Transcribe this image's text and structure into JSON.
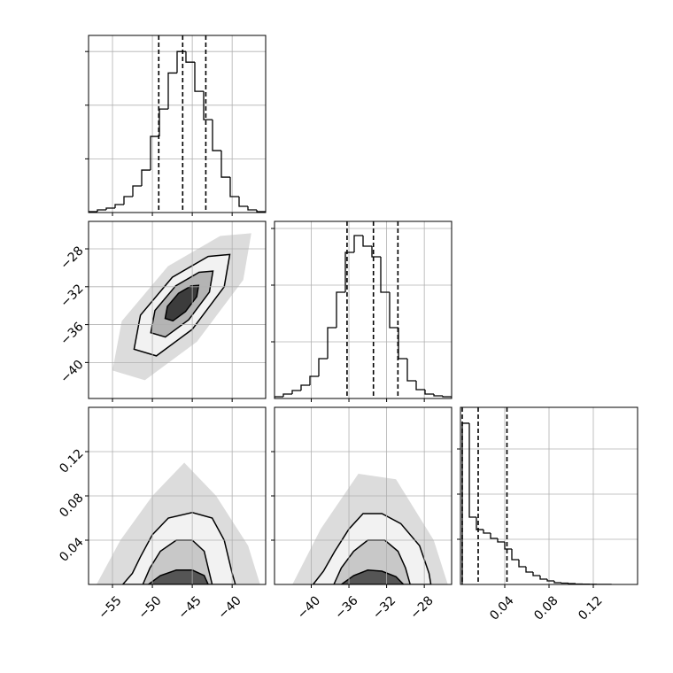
{
  "chart_data": [
    {
      "type": "hist",
      "xlim": [
        -58,
        -35.8
      ],
      "ylim": [
        0,
        3300
      ],
      "xticks": [
        -55,
        -50,
        -45,
        -40
      ],
      "yticks": [
        1000,
        2000,
        3000
      ],
      "show_xtick_labels": false,
      "show_ytick_labels": false,
      "grid": true,
      "color": "#000000",
      "bins": [
        -58,
        -56.89,
        -55.78,
        -54.67,
        -53.56,
        -52.45,
        -51.34,
        -50.23,
        -49.12,
        -48.01,
        -46.9,
        -45.79,
        -44.68,
        -43.57,
        -42.46,
        -41.35,
        -40.24,
        -39.13,
        -38.02,
        -36.91,
        -35.8
      ],
      "counts": [
        16,
        50,
        82,
        148,
        297,
        495,
        791,
        1418,
        1929,
        2600,
        3000,
        2802,
        2258,
        1731,
        1154,
        659,
        297,
        115,
        50,
        16
      ],
      "quantiles": [
        -49.2,
        -46.2,
        -43.3
      ]
    },
    {
      "type": "contour",
      "xlim": [
        -58,
        -35.8
      ],
      "ylim": [
        -43.8,
        -25.1
      ],
      "xticks": [
        -55,
        -50,
        -45,
        -40
      ],
      "yticks": [
        {
          "value": -28,
          "label": "−28"
        },
        {
          "value": -32,
          "label": "−32"
        },
        {
          "value": -36,
          "label": "−36"
        },
        {
          "value": -40,
          "label": "−40"
        }
      ],
      "show_xtick_labels": false,
      "show_ytick_labels": true,
      "grid": true,
      "contours": [
        {
          "fill": "#dcdcdc",
          "x": [
            -37.6,
            -41.51,
            -48.04,
            -53.84,
            -55.0,
            -50.94,
            -44.41,
            -38.61
          ],
          "y": [
            -26.35,
            -26.64,
            -29.83,
            -35.63,
            -40.85,
            -41.87,
            -37.81,
            -31.28
          ]
        },
        {
          "fill": "#f2f2f2",
          "edge": "#000000",
          "x": [
            -40.3,
            -43.0,
            -47.5,
            -51.5,
            -52.3,
            -49.5,
            -45.0,
            -41.0
          ],
          "y": [
            -28.6,
            -28.8,
            -31.0,
            -35.0,
            -38.6,
            -39.3,
            -36.5,
            -32.0
          ]
        },
        {
          "fill": "#b4b4b4",
          "edge": "#000000",
          "x": [
            -42.4,
            -44.15,
            -47.08,
            -49.68,
            -50.2,
            -48.38,
            -45.45,
            -42.85
          ],
          "y": [
            -30.35,
            -30.48,
            -31.91,
            -34.51,
            -36.85,
            -37.31,
            -35.49,
            -32.56
          ]
        },
        {
          "fill": "#3c3c3c",
          "edge": "#000000",
          "x": [
            -44.2,
            -45.14,
            -46.72,
            -48.12,
            -48.4,
            -47.42,
            -45.84,
            -44.44
          ],
          "y": [
            -31.85,
            -31.92,
            -32.69,
            -34.09,
            -35.35,
            -35.6,
            -34.62,
            -33.04
          ]
        }
      ]
    },
    {
      "type": "hist",
      "xlim": [
        -43.9,
        -25.1
      ],
      "ylim": [
        0,
        3125
      ],
      "xticks": [
        -40,
        -36,
        -32,
        -28
      ],
      "yticks": [
        1000,
        2000,
        3000
      ],
      "show_xtick_labels": false,
      "show_ytick_labels": false,
      "grid": true,
      "color": "#000000",
      "bins": [
        -43.9,
        -42.96,
        -42.02,
        -41.08,
        -40.14,
        -39.2,
        -38.26,
        -37.32,
        -36.38,
        -35.44,
        -34.5,
        -33.56,
        -32.62,
        -31.68,
        -30.74,
        -29.8,
        -28.86,
        -27.92,
        -26.98,
        -26.04,
        -25.1
      ],
      "counts": [
        31,
        78,
        141,
        234,
        391,
        703,
        1250,
        1875,
        2578,
        2875,
        2688,
        2500,
        1875,
        1250,
        703,
        313,
        156,
        78,
        47,
        31
      ],
      "quantiles": [
        -36.2,
        -33.4,
        -30.8
      ]
    },
    {
      "type": "contour",
      "xlim": [
        -58,
        -35.8
      ],
      "ylim": [
        0,
        0.16
      ],
      "xticks": [
        {
          "value": -55,
          "label": "−55"
        },
        {
          "value": -50,
          "label": "−50"
        },
        {
          "value": -45,
          "label": "−45"
        },
        {
          "value": -40,
          "label": "−40"
        }
      ],
      "yticks": [
        0.04,
        0.08,
        0.12
      ],
      "show_xtick_labels": true,
      "show_ytick_labels": true,
      "grid": true,
      "contours": [
        {
          "fill": "#dcdcdc",
          "x": [
            -57,
            -54,
            -50,
            -46,
            -42,
            -38,
            -36.5
          ],
          "y": [
            0,
            0.04,
            0.08,
            0.11,
            0.08,
            0.035,
            0
          ]
        },
        {
          "fill": "#f2f2f2",
          "edge": "#000000",
          "x": [
            -53.7,
            -52.5,
            -51.5,
            -50,
            -48,
            -45,
            -42.5,
            -41,
            -40,
            -39.6
          ],
          "y": [
            0,
            0.01,
            0.025,
            0.045,
            0.06,
            0.065,
            0.06,
            0.04,
            0.01,
            0
          ]
        },
        {
          "fill": "#c8c8c8",
          "edge": "#000000",
          "x": [
            -51.2,
            -50.3,
            -49,
            -47,
            -45,
            -43.5,
            -43,
            -42.5
          ],
          "y": [
            0,
            0.015,
            0.03,
            0.04,
            0.04,
            0.03,
            0.015,
            0
          ]
        },
        {
          "fill": "#555555",
          "edge": "#000000",
          "x": [
            -50.5,
            -49,
            -47,
            -45,
            -43.5,
            -43
          ],
          "y": [
            0,
            0.008,
            0.013,
            0.013,
            0.008,
            0
          ]
        }
      ]
    },
    {
      "type": "contour",
      "xlim": [
        -43.9,
        -25.1
      ],
      "ylim": [
        0,
        0.16
      ],
      "xticks": [
        {
          "value": -40,
          "label": "−40"
        },
        {
          "value": -36,
          "label": "−36"
        },
        {
          "value": -32,
          "label": "−32"
        },
        {
          "value": -28,
          "label": "−28"
        }
      ],
      "yticks": [
        0.04,
        0.08,
        0.12
      ],
      "show_xtick_labels": true,
      "show_ytick_labels": false,
      "grid": true,
      "contours": [
        {
          "fill": "#dcdcdc",
          "x": [
            -42,
            -39,
            -35,
            -31,
            -27,
            -25.5
          ],
          "y": [
            0,
            0.05,
            0.1,
            0.095,
            0.04,
            0
          ]
        },
        {
          "fill": "#f2f2f2",
          "edge": "#000000",
          "x": [
            -39.8,
            -38.7,
            -37.5,
            -36,
            -34.5,
            -32.5,
            -30.5,
            -28.5,
            -27.5,
            -27.3
          ],
          "y": [
            0,
            0.012,
            0.03,
            0.05,
            0.064,
            0.064,
            0.055,
            0.035,
            0.01,
            0
          ]
        },
        {
          "fill": "#c8c8c8",
          "edge": "#000000",
          "x": [
            -37.6,
            -36.8,
            -35.5,
            -34,
            -32.2,
            -30.8,
            -30,
            -29.5
          ],
          "y": [
            0,
            0.015,
            0.03,
            0.04,
            0.04,
            0.03,
            0.015,
            0
          ]
        },
        {
          "fill": "#555555",
          "edge": "#000000",
          "x": [
            -36.8,
            -35.5,
            -34,
            -32.5,
            -31,
            -30.2
          ],
          "y": [
            0,
            0.008,
            0.013,
            0.012,
            0.007,
            0
          ]
        }
      ]
    },
    {
      "type": "hist",
      "xlim": [
        0,
        0.16
      ],
      "ylim": [
        0,
        3922
      ],
      "xticks": [
        0.04,
        0.08,
        0.12
      ],
      "yticks": [
        1000,
        2000,
        3000
      ],
      "show_xtick_labels": true,
      "show_ytick_labels": false,
      "grid": true,
      "color": "#000000",
      "bins": [
        0.0016,
        0.008,
        0.0144,
        0.0208,
        0.0272,
        0.0336,
        0.04,
        0.0464,
        0.0528,
        0.0592,
        0.0656,
        0.072,
        0.0784,
        0.0848,
        0.0912,
        0.0976,
        0.104,
        0.1104,
        0.1168,
        0.1232,
        0.1296,
        0.136
      ],
      "counts": [
        3570,
        1490,
        1215,
        1137,
        1019,
        941,
        784,
        549,
        392,
        274,
        196,
        118,
        78,
        39,
        29,
        20,
        10,
        6,
        4,
        2,
        2
      ],
      "quantiles": [
        0.0016,
        0.016,
        0.042
      ]
    }
  ]
}
